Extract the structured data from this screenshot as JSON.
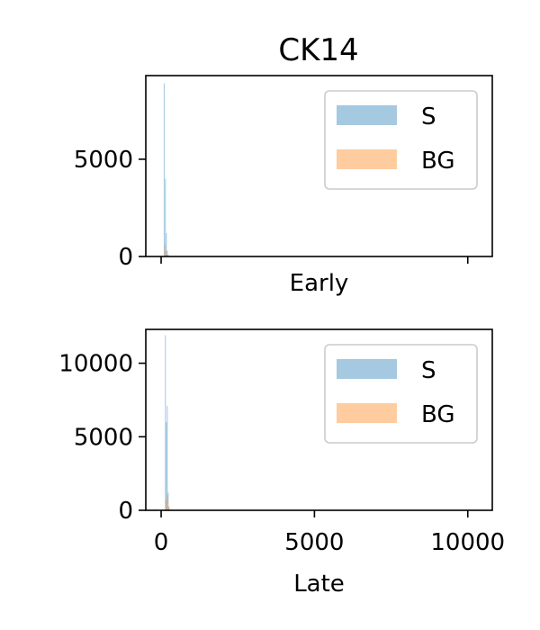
{
  "chart_data": {
    "title": "CK14",
    "colors": {
      "S": "#1f77b4",
      "BG": "#ff7f0e",
      "alpha": 0.4
    },
    "panels": [
      {
        "type": "bar",
        "xlabel": "Early",
        "xlim": [
          -500,
          10800
        ],
        "ylim": [
          0,
          9300
        ],
        "yticks": [
          0,
          5000
        ],
        "xticks": [
          0,
          10000
        ],
        "show_xtick_labels": false,
        "legend": {
          "placement": "top-right",
          "entries": [
            "S",
            "BG"
          ]
        },
        "series": [
          {
            "name": "S",
            "x": [
              100,
              140,
              170,
              200,
              230
            ],
            "values": [
              8900,
              4000,
              1200,
              300,
              100
            ],
            "bin_width": 30
          },
          {
            "name": "BG",
            "x": [
              120,
              160,
              200
            ],
            "values": [
              600,
              300,
              80
            ],
            "bin_width": 30
          }
        ]
      },
      {
        "type": "bar",
        "xlabel": "Late",
        "xlim": [
          -500,
          10800
        ],
        "ylim": [
          0,
          12300
        ],
        "yticks": [
          0,
          5000,
          10000
        ],
        "xticks": [
          0,
          5000,
          10000
        ],
        "show_xtick_labels": true,
        "legend": {
          "placement": "top-right",
          "entries": [
            "S",
            "BG"
          ]
        },
        "series": [
          {
            "name": "S",
            "x": [
              140,
              170,
              200,
              230,
              260
            ],
            "values": [
              11900,
              6000,
              7100,
              1200,
              200
            ],
            "bin_width": 30
          },
          {
            "name": "BG",
            "x": [
              160,
              200,
              240
            ],
            "values": [
              700,
              1000,
              300
            ],
            "bin_width": 30
          }
        ]
      }
    ]
  }
}
